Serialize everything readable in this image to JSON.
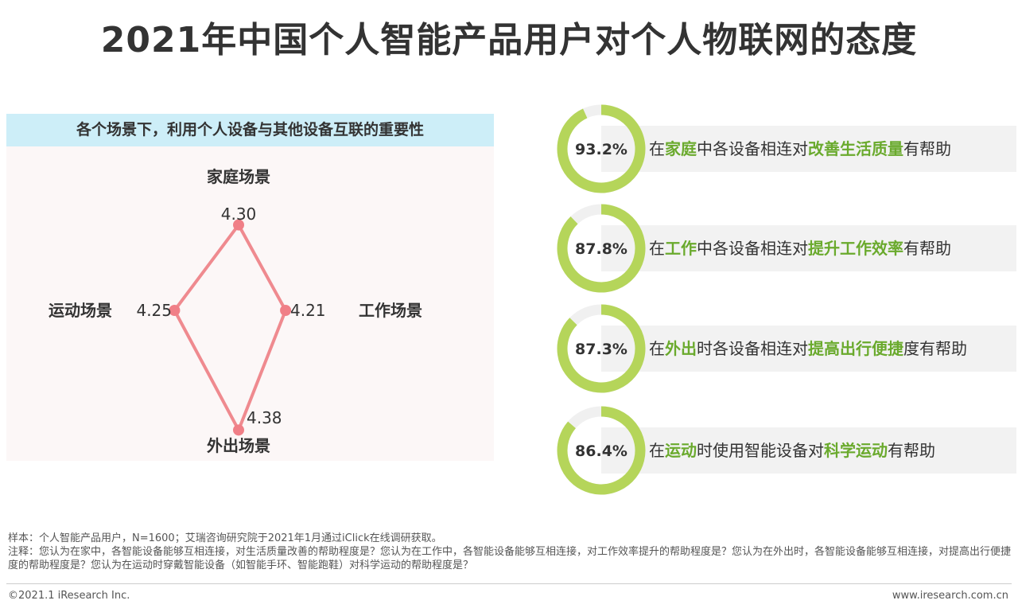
{
  "title": "2021年中国个人智能产品用户对个人物联网的态度",
  "chart_data": [
    {
      "type": "radar",
      "title": "各个场景下，利用个人设备与其他设备互联的重要性",
      "categories": [
        "家庭场景",
        "工作场景",
        "外出场景",
        "运动场景"
      ],
      "values": [
        4.3,
        4.21,
        4.38,
        4.25
      ],
      "value_labels": [
        "4.30",
        "4.21",
        "4.38",
        "4.25"
      ],
      "line_color": "#ef8a8f",
      "point_color": "#f07f87"
    },
    {
      "type": "donut",
      "values": [
        93.2,
        87.8,
        87.3,
        86.4
      ],
      "value_labels": [
        "93.2%",
        "87.8%",
        "87.3%",
        "86.4%"
      ],
      "ring_color": "#b5d55a",
      "track_color": "#f0f0f0"
    }
  ],
  "statements": [
    {
      "p1": "在",
      "h1": "家庭",
      "p2": "中各设备相连对",
      "h2": "改善生活质量",
      "p3": "有帮助"
    },
    {
      "p1": "在",
      "h1": "工作",
      "p2": "中各设备相连对",
      "h2": "提升工作效率",
      "p3": "有帮助"
    },
    {
      "p1": "在",
      "h1": "外出",
      "p2": "时各设备相连对",
      "h2": "提高出行便捷",
      "p3": "度有帮助"
    },
    {
      "p1": "在",
      "h1": "运动",
      "p2": "时使用智能设备对",
      "h2": "科学运动",
      "p3": "有帮助"
    }
  ],
  "notes": {
    "sample": "样本：个人智能产品用户，N=1600；艾瑞咨询研究院于2021年1月通过iClick在线调研获取。",
    "note": "注释：您认为在家中，各智能设备能够互相连接，对生活质量改善的帮助程度是？您认为在工作中，各智能设备能够互相连接，对工作效率提升的帮助程度是？您认为在外出时，各智能设备能够互相连接，对提高出行便捷度的帮助程度是？您认为在运动时穿戴智能设备（如智能手环、智能跑鞋）对科学运动的帮助程度是？"
  },
  "footer": {
    "copyright": "©2021.1 iResearch Inc.",
    "site": "www.iresearch.com.cn"
  }
}
